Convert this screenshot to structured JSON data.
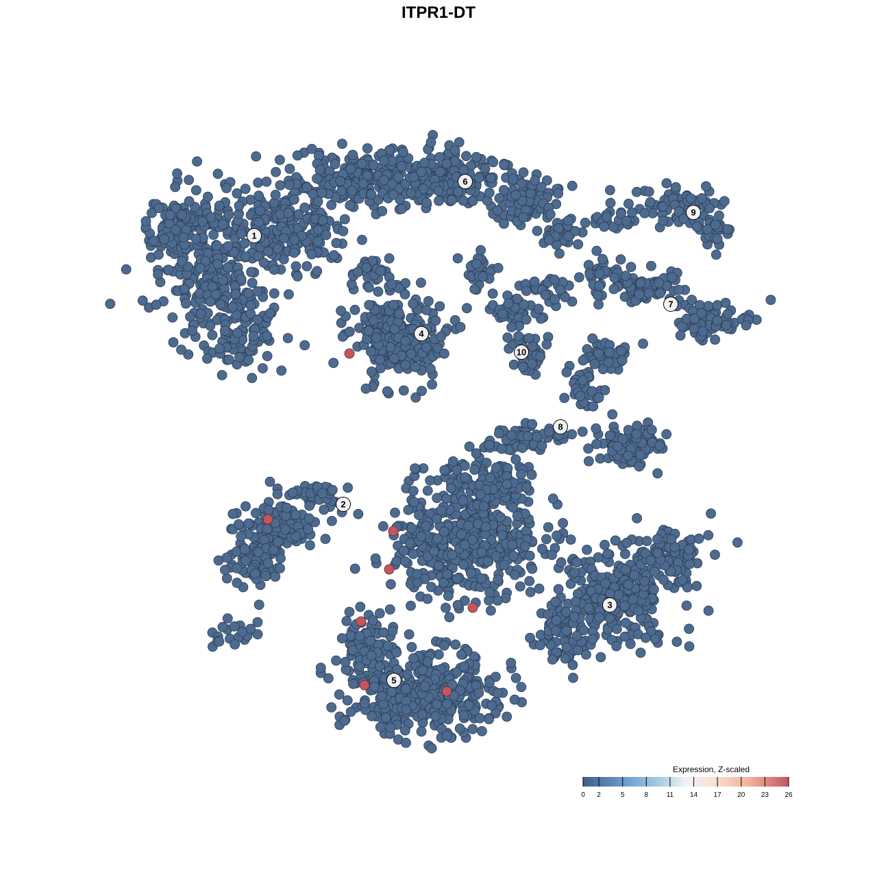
{
  "chart_data": {
    "type": "scatter",
    "title": "ITPR1-DT",
    "xlabel": "",
    "ylabel": "",
    "grid": false,
    "cluster_labels": [
      "1",
      "2",
      "3",
      "4",
      "5",
      "6",
      "7",
      "8",
      "9",
      "10"
    ],
    "point_color_low": "#4d6a8f",
    "point_color_high": "#c65560",
    "high_expression_cell_count": 8,
    "legend": {
      "title": "Expression, Z-scaled",
      "placement": "bottom-right",
      "range": [
        0,
        26
      ],
      "ticks": [
        "0",
        "2",
        "5",
        "8",
        "11",
        "14",
        "17",
        "20",
        "23",
        "26"
      ],
      "colors": [
        "#3f5f8c",
        "#6b9ccb",
        "#a9cfe2",
        "#eef3f7",
        "#f9e3d8",
        "#f3b49b",
        "#c65560"
      ]
    }
  }
}
